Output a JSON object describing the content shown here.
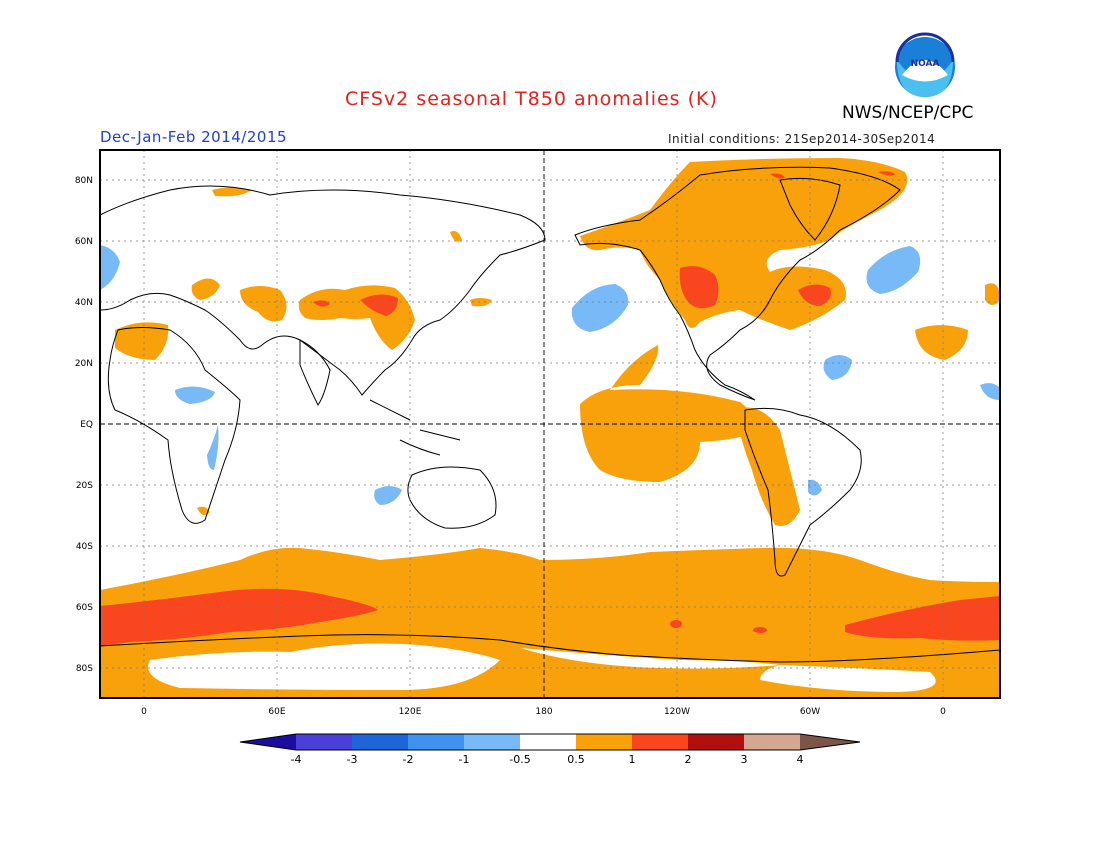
{
  "header": {
    "title": "CFSv2 seasonal T850 anomalies (K)",
    "organization": "NWS/NCEP/CPC",
    "logo_text": "NOAA",
    "season": "Dec-Jan-Feb 2014/2015",
    "initial_conditions": "Initial conditions: 21Sep2014-30Sep2014"
  },
  "map": {
    "projection": "cylindrical equidistant",
    "lat_labels": [
      "80N",
      "60N",
      "40N",
      "20N",
      "EQ",
      "20S",
      "40S",
      "60S",
      "80S"
    ],
    "lon_labels": [
      "0",
      "60E",
      "120E",
      "180",
      "120W",
      "60W",
      "0"
    ],
    "grid": true,
    "colors": {
      "anom_0.5_1": "#f9a10b",
      "anom_1_2": "#f9461f",
      "anom_neg_0.5_1": "#78b9f7",
      "land_outline": "#000000"
    }
  },
  "colorbar": {
    "labels": [
      "-4",
      "-3",
      "-2",
      "-1",
      "-0.5",
      "0.5",
      "1",
      "2",
      "3",
      "4"
    ],
    "colors": [
      "#1c0ca0",
      "#4a3fd6",
      "#1e66d8",
      "#3f93ee",
      "#78b9f7",
      "#ffffff",
      "#f9a10b",
      "#f9461f",
      "#b0100e",
      "#d4a890",
      "#7c5548"
    ]
  }
}
